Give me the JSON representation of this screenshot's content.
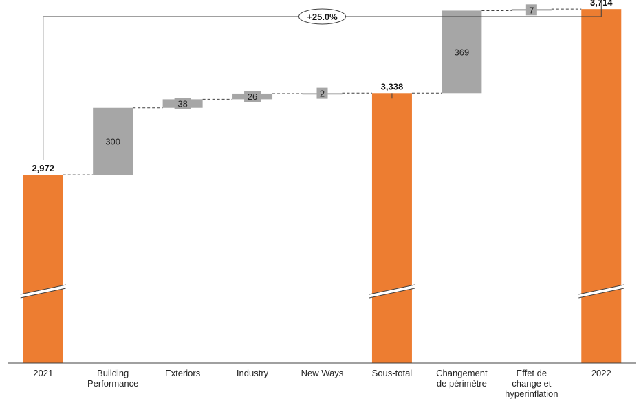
{
  "chart_data": {
    "type": "waterfall",
    "categories": [
      "2021",
      "Building\nPerformance",
      "Exteriors",
      "Industry",
      "New Ways",
      "Sous-total",
      "Changement\nde périmètre",
      "Effet de\nchange et\nhyperinflation",
      "2022"
    ],
    "values": [
      2972,
      300,
      38,
      26,
      2,
      3338,
      369,
      7,
      3714
    ],
    "kinds": [
      "total",
      "delta",
      "delta",
      "delta",
      "delta",
      "total",
      "delta",
      "delta",
      "total"
    ],
    "value_labels": [
      "2,972",
      "300",
      "38",
      "26",
      "2",
      "3,338",
      "369",
      "7",
      "3,714"
    ],
    "growth_annotation": "+25.0%",
    "axis_break": true,
    "colors": {
      "total": "#ED7D31",
      "delta": "#A6A6A6",
      "connector": "#404040",
      "axis": "#404040"
    }
  }
}
